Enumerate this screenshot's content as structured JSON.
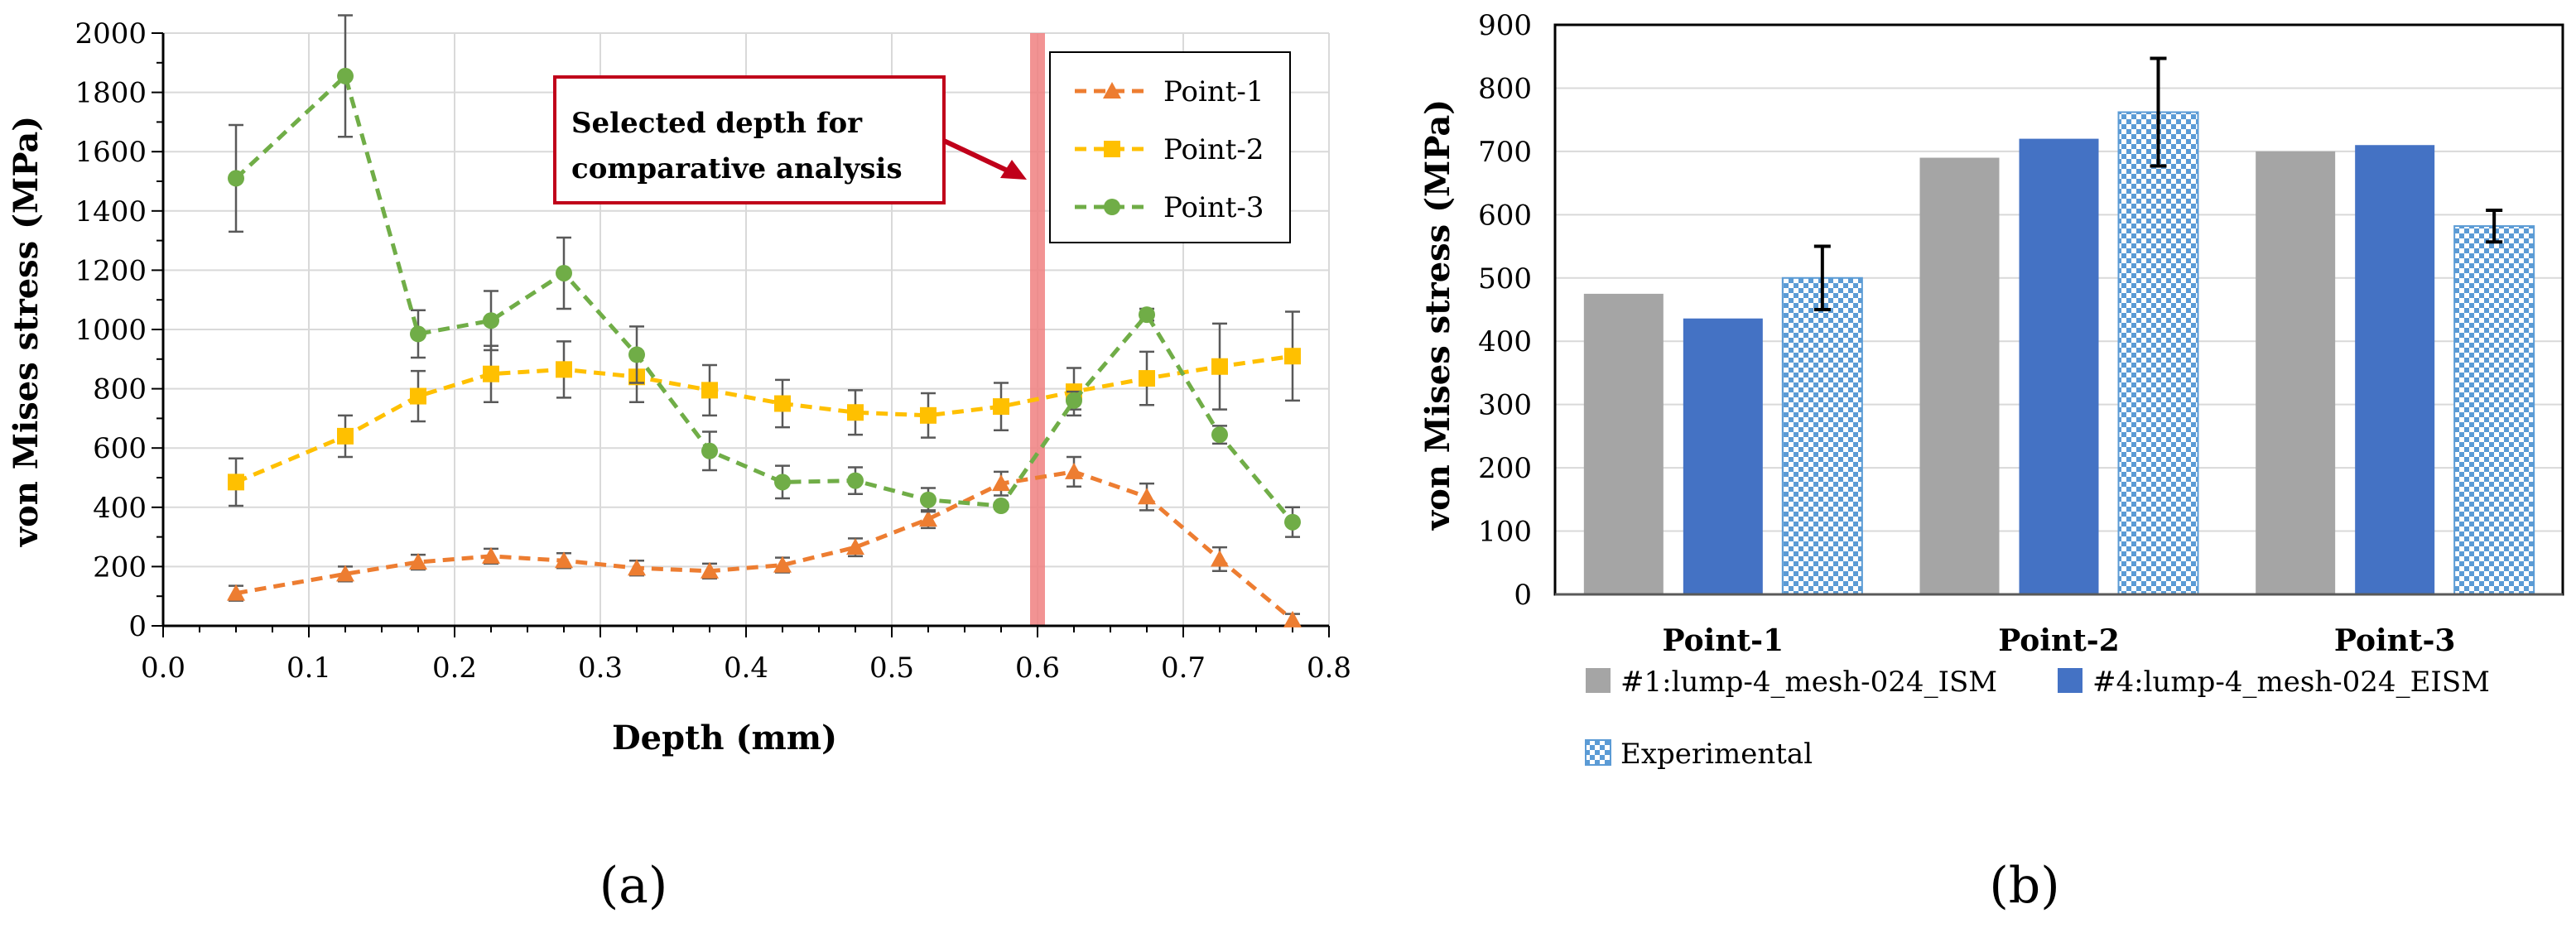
{
  "chart_data": [
    {
      "type": "line",
      "panel_label": "(a)",
      "title": "",
      "xlabel": "Depth (mm)",
      "ylabel": "von Mises stress (MPa)",
      "xlim": [
        0,
        0.8
      ],
      "ylim": [
        0,
        2000
      ],
      "x_ticks": [
        "0.0",
        "0.1",
        "0.2",
        "0.3",
        "0.4",
        "0.5",
        "0.6",
        "0.7",
        "0.8"
      ],
      "y_ticks": [
        "0",
        "200",
        "400",
        "600",
        "800",
        "1000",
        "1200",
        "1400",
        "1600",
        "1800",
        "2000"
      ],
      "grid": true,
      "legend_position": "top-right",
      "annotation": {
        "lines": [
          "Selected depth for",
          "comparative analysis"
        ],
        "highlight_x": 0.6,
        "color": "#c0001a"
      },
      "series": [
        {
          "name": "Point-1",
          "marker": "triangle",
          "color": "#ed7d31",
          "x": [
            0.05,
            0.125,
            0.175,
            0.225,
            0.275,
            0.325,
            0.375,
            0.425,
            0.475,
            0.525,
            0.575,
            0.625,
            0.675,
            0.725,
            0.775
          ],
          "values": [
            110,
            175,
            215,
            235,
            220,
            195,
            185,
            205,
            265,
            360,
            480,
            520,
            435,
            225,
            20
          ],
          "errors": [
            25,
            25,
            25,
            25,
            25,
            25,
            25,
            25,
            30,
            30,
            40,
            50,
            45,
            40,
            20
          ]
        },
        {
          "name": "Point-2",
          "marker": "square",
          "color": "#ffc000",
          "x": [
            0.05,
            0.125,
            0.175,
            0.225,
            0.275,
            0.325,
            0.375,
            0.425,
            0.475,
            0.525,
            0.575,
            0.625,
            0.675,
            0.725,
            0.775
          ],
          "values": [
            485,
            640,
            775,
            850,
            865,
            840,
            795,
            750,
            720,
            710,
            740,
            790,
            835,
            875,
            910
          ],
          "errors": [
            80,
            70,
            85,
            95,
            95,
            85,
            85,
            80,
            75,
            75,
            80,
            80,
            90,
            145,
            150
          ]
        },
        {
          "name": "Point-3",
          "marker": "circle",
          "color": "#70ad47",
          "x": [
            0.05,
            0.125,
            0.175,
            0.225,
            0.275,
            0.325,
            0.375,
            0.425,
            0.475,
            0.525,
            0.575,
            0.625,
            0.675,
            0.725,
            0.775
          ],
          "values": [
            1510,
            1855,
            985,
            1030,
            1190,
            915,
            590,
            485,
            490,
            425,
            405,
            760,
            1050,
            645,
            350
          ],
          "errors": [
            180,
            205,
            80,
            100,
            120,
            95,
            65,
            55,
            45,
            40,
            10,
            30,
            20,
            30,
            50
          ]
        }
      ]
    },
    {
      "type": "bar",
      "panel_label": "(b)",
      "title": "",
      "xlabel": "",
      "ylabel": "von Mises stress (MPa)",
      "ylim": [
        0,
        900
      ],
      "y_ticks": [
        "0",
        "100",
        "200",
        "300",
        "400",
        "500",
        "600",
        "700",
        "800",
        "900"
      ],
      "grid": true,
      "legend_position": "bottom",
      "categories": [
        "Point-1",
        "Point-2",
        "Point-3"
      ],
      "series": [
        {
          "name": "#1:lump-4_mesh-024_ISM",
          "color": "#a5a5a5",
          "values": [
            475,
            690,
            700
          ],
          "errors": [
            0,
            0,
            0
          ]
        },
        {
          "name": "#4:lump-4_mesh-024_EISM",
          "color": "#4472c4",
          "values": [
            436,
            720,
            710
          ],
          "errors": [
            0,
            0,
            0
          ]
        },
        {
          "name": "Experimental",
          "color": "#5b9bd5",
          "pattern": "checker",
          "values": [
            500,
            762,
            582
          ],
          "errors": [
            50,
            85,
            25
          ]
        }
      ]
    }
  ]
}
